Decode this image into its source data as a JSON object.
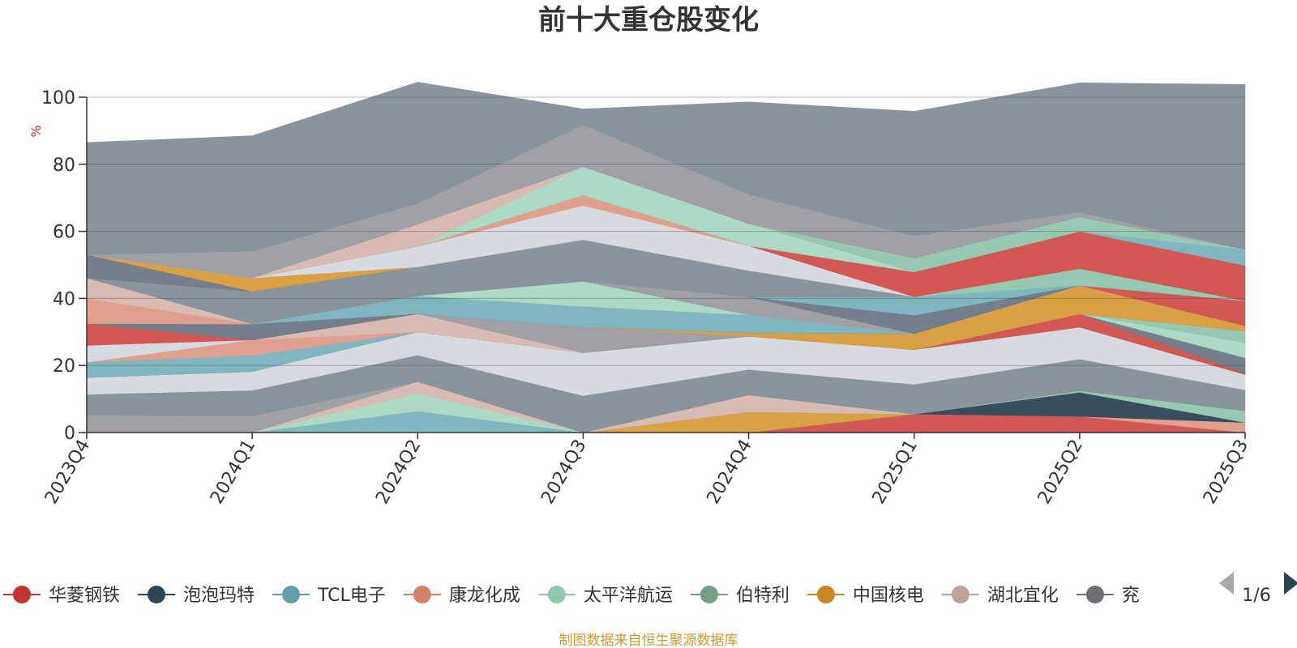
{
  "chart_data": {
    "type": "area",
    "title": "前十大重仓股变化",
    "ylabel": "%",
    "ylim": [
      0,
      100
    ],
    "y_ticks": [
      0,
      20,
      40,
      60,
      80,
      100
    ],
    "x": [
      "2023Q4",
      "2024Q1",
      "2024Q2",
      "2024Q3",
      "2024Q4",
      "2025Q1",
      "2025Q2",
      "2025Q3"
    ],
    "series": [
      {
        "name": "华菱钢铁",
        "color": "#d0504b",
        "values": [
          0,
          0,
          0,
          0,
          0,
          5.5,
          4.8,
          0
        ]
      },
      {
        "name": "",
        "color": "#e09a88",
        "values": [
          0,
          0,
          0,
          0,
          0,
          0,
          0,
          3
        ]
      },
      {
        "name": "泡泡玛特",
        "color": "#2f4554",
        "values": [
          0,
          0,
          0,
          0,
          0,
          0,
          7.2,
          0
        ]
      },
      {
        "name": "",
        "color": "#91c7ae",
        "values": [
          0,
          0,
          0,
          0,
          0,
          0,
          0.5,
          3.5
        ]
      },
      {
        "name": "中国核电",
        "color": "#d99b3b",
        "values": [
          0,
          0,
          0,
          0,
          6.2,
          0,
          0,
          0
        ]
      },
      {
        "name": "TCL电子",
        "color": "#7ab3bd",
        "values": [
          0,
          0,
          6.4,
          0,
          0,
          0,
          0,
          0
        ]
      },
      {
        "name": "太平洋航运",
        "color": "#a8d9c2",
        "values": [
          0,
          0,
          5.3,
          0,
          0,
          0,
          0,
          0
        ]
      },
      {
        "name": "湖北宜化",
        "color": "#d6b9b0",
        "values": [
          0,
          0,
          3.5,
          0,
          5.0,
          0,
          0,
          0
        ]
      },
      {
        "name": "",
        "color": "#9a9ca1",
        "values": [
          5.3,
          5.0,
          0,
          0,
          0,
          0,
          0,
          0
        ]
      },
      {
        "name": "",
        "color": "#848f98",
        "values": [
          6.1,
          7.6,
          7.9,
          11.0,
          7.6,
          8.9,
          9.4,
          6.2
        ]
      },
      {
        "name": "",
        "color": "#d5d9e0",
        "values": [
          5.0,
          5.6,
          6.9,
          12.8,
          9.9,
          10.3,
          9.5,
          4.6
        ]
      },
      {
        "name": "",
        "color": "#d0504b",
        "values": [
          0,
          0,
          0,
          0,
          0,
          0,
          4.0,
          0.5
        ]
      },
      {
        "name": "",
        "color": "#6c7a86",
        "values": [
          0,
          0,
          0,
          0,
          0,
          0,
          0,
          4.5
        ]
      },
      {
        "name": "",
        "color": "#a8d9c2",
        "values": [
          0,
          0,
          0,
          0,
          0,
          0,
          0,
          4.5
        ]
      },
      {
        "name": "",
        "color": "#91c7ae",
        "values": [
          0,
          0,
          0,
          0,
          0,
          0,
          0,
          3.5
        ]
      },
      {
        "name": "",
        "color": "#7ab3bd",
        "values": [
          4.6,
          4.8,
          0,
          0,
          0,
          0,
          0,
          0
        ]
      },
      {
        "name": "",
        "color": "#e09a88",
        "values": [
          0,
          4.6,
          0,
          0,
          0,
          0,
          0,
          0
        ]
      },
      {
        "name": "",
        "color": "#d6b9b0",
        "values": [
          0,
          0,
          5.4,
          0,
          0,
          0,
          0,
          0
        ]
      },
      {
        "name": "",
        "color": "#9a9ca1",
        "values": [
          0,
          0,
          0,
          7.6,
          0,
          0,
          0,
          0
        ]
      },
      {
        "name": "",
        "color": "#d99b3b",
        "values": [
          0,
          0,
          0,
          0,
          1.0,
          4.8,
          8.5,
          1.5
        ]
      },
      {
        "name": "",
        "color": "#d5d9e0",
        "values": [
          5.0,
          0,
          0,
          0,
          0,
          0,
          0,
          0
        ]
      },
      {
        "name": "",
        "color": "#d0504b",
        "values": [
          6.5,
          0,
          0,
          0,
          0,
          0,
          0,
          7.5
        ]
      },
      {
        "name": "",
        "color": "#6c7a86",
        "values": [
          0,
          4.8,
          0,
          0,
          0,
          0,
          0,
          0
        ]
      },
      {
        "name": "",
        "color": "#7ab3bd",
        "values": [
          0,
          0,
          5.4,
          6.2,
          5.4,
          0,
          0,
          0
        ]
      },
      {
        "name": "",
        "color": "#a8d9c2",
        "values": [
          0,
          0,
          0,
          7.5,
          0,
          0,
          0,
          0
        ]
      },
      {
        "name": "",
        "color": "#9a9ca1",
        "values": [
          0,
          0,
          0,
          0,
          5.3,
          0,
          0,
          0
        ]
      },
      {
        "name": "",
        "color": "#6c7a86",
        "values": [
          0,
          0,
          0,
          0,
          0,
          5.5,
          0,
          0
        ]
      },
      {
        "name": "",
        "color": "#7ab3bd",
        "values": [
          0,
          0,
          0,
          0,
          0,
          5.5,
          0,
          0
        ]
      },
      {
        "name": "",
        "color": "#91c7ae",
        "values": [
          0,
          0,
          0,
          0,
          0,
          0,
          5.0,
          0
        ]
      },
      {
        "name": "",
        "color": "#e09a88",
        "values": [
          7.5,
          0,
          0,
          0,
          0,
          0,
          0,
          0
        ]
      },
      {
        "name": "",
        "color": "#d6b9b0",
        "values": [
          6.1,
          0,
          0,
          0,
          0,
          0,
          0,
          0
        ]
      },
      {
        "name": "",
        "color": "#848f98",
        "values": [
          0,
          9.7,
          8.6,
          12.4,
          7.9,
          0,
          0,
          0
        ]
      },
      {
        "name": "",
        "color": "#6c7a86",
        "values": [
          7.0,
          0,
          0,
          0,
          0,
          0,
          0,
          0
        ]
      },
      {
        "name": "",
        "color": "#d99b3b",
        "values": [
          0,
          4.0,
          0,
          0,
          0,
          0,
          0,
          0
        ]
      },
      {
        "name": "",
        "color": "#d5d9e0",
        "values": [
          0,
          0,
          6.1,
          10.2,
          7.4,
          0,
          0,
          0
        ]
      },
      {
        "name": "",
        "color": "#e09a88",
        "values": [
          0,
          0,
          0,
          3.1,
          0,
          0,
          0,
          0
        ]
      },
      {
        "name": "",
        "color": "#d0504b",
        "values": [
          0,
          0,
          0,
          0,
          0,
          7.4,
          11.1,
          10.5
        ]
      },
      {
        "name": "",
        "color": "#7ab3bd",
        "values": [
          0,
          0,
          0,
          0,
          0,
          0,
          0,
          4.8
        ]
      },
      {
        "name": "",
        "color": "#a8d9c2",
        "values": [
          0,
          0,
          0,
          8.5,
          6.6,
          0,
          0,
          0
        ]
      },
      {
        "name": "",
        "color": "#91c7ae",
        "values": [
          0,
          0,
          0,
          0,
          0,
          4.1,
          4.3,
          0
        ]
      },
      {
        "name": "",
        "color": "#d6b9b0",
        "values": [
          0,
          0,
          6.6,
          0,
          0,
          0,
          0,
          0
        ]
      },
      {
        "name": "",
        "color": "#9a9ca1",
        "values": [
          0,
          8.0,
          6.3,
          12.5,
          8.8,
          6.7,
          1.5,
          0
        ]
      },
      {
        "name": "",
        "color": "#848f98",
        "values": [
          33.4,
          34.4,
          36.1,
          4.7,
          27.5,
          37.1,
          38.5,
          49.2
        ]
      }
    ],
    "legend": {
      "position": "bottom",
      "items": [
        {
          "name": "华菱钢铁",
          "color": "#c23531"
        },
        {
          "name": "泡泡玛特",
          "color": "#2f4554"
        },
        {
          "name": "TCL电子",
          "color": "#61a0a8"
        },
        {
          "name": "康龙化成",
          "color": "#d48265"
        },
        {
          "name": "太平洋航运",
          "color": "#91c7ae"
        },
        {
          "name": "伯特利",
          "color": "#749f83"
        },
        {
          "name": "中国核电",
          "color": "#ca8622"
        },
        {
          "name": "湖北宜化",
          "color": "#bda29a"
        },
        {
          "name": "兖",
          "color": "#6e7074"
        }
      ],
      "page": "1/6"
    },
    "grid": true
  },
  "source_note": "制图数据来自恒生聚源数据库"
}
